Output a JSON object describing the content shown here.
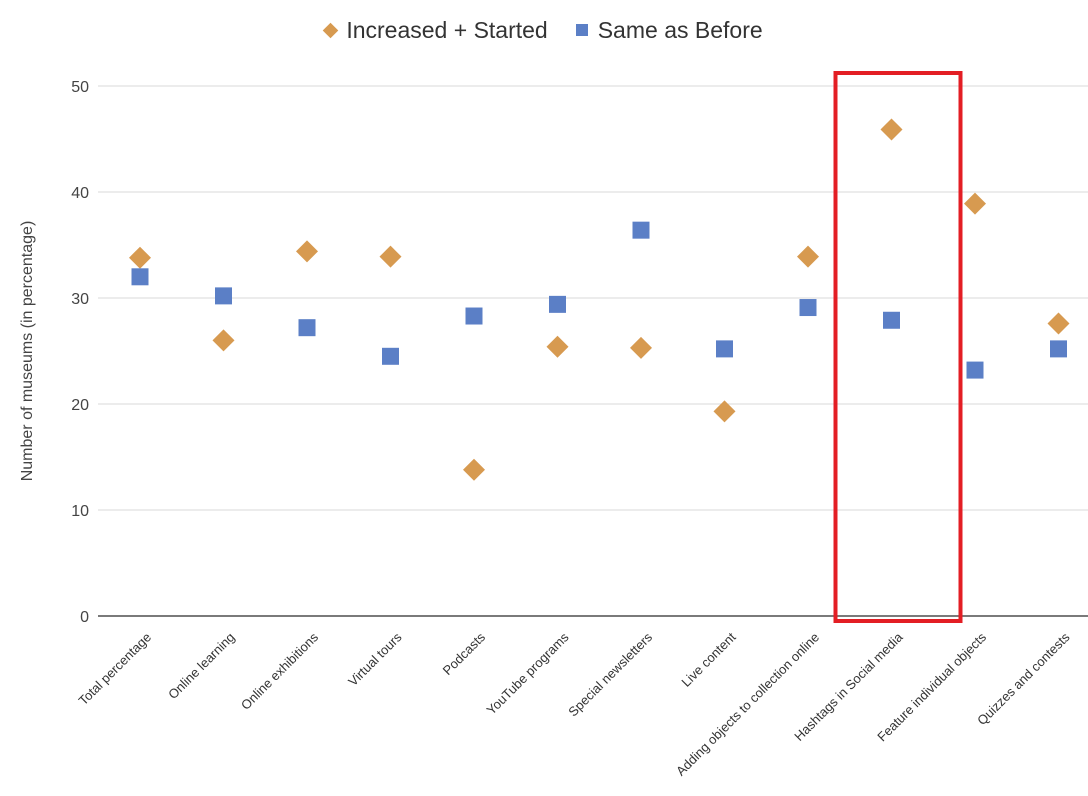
{
  "chart_data": {
    "type": "scatter",
    "title": "",
    "xlabel": "",
    "ylabel": "Number of museums (in percentage)",
    "ylim": [
      0,
      50
    ],
    "yticks": [
      0,
      10,
      20,
      30,
      40,
      50
    ],
    "grid": true,
    "legend_position": "top-center",
    "categories": [
      "Total percentage",
      "Online learning",
      "Online exhibitions",
      "Virtual tours",
      "Podcasts",
      "YouTube programs",
      "Special newsletters",
      "Live content",
      "Adding objects to collection online",
      "Hashtags in Social media",
      "Feature individual objects",
      "Quizzes and contests"
    ],
    "series": [
      {
        "name": "Increased + Started",
        "marker": "diamond",
        "color": "#D79A50",
        "values": [
          33.8,
          26.0,
          34.4,
          33.9,
          13.8,
          25.4,
          25.3,
          19.3,
          33.9,
          45.9,
          38.9,
          27.6
        ]
      },
      {
        "name": "Same as Before",
        "marker": "square",
        "color": "#5B7FC6",
        "values": [
          32.0,
          30.2,
          27.2,
          24.5,
          28.3,
          29.4,
          36.4,
          25.2,
          29.1,
          27.9,
          23.2,
          25.2
        ]
      }
    ],
    "highlight": {
      "category": "Hashtags in Social media",
      "color": "#E31E24"
    }
  }
}
